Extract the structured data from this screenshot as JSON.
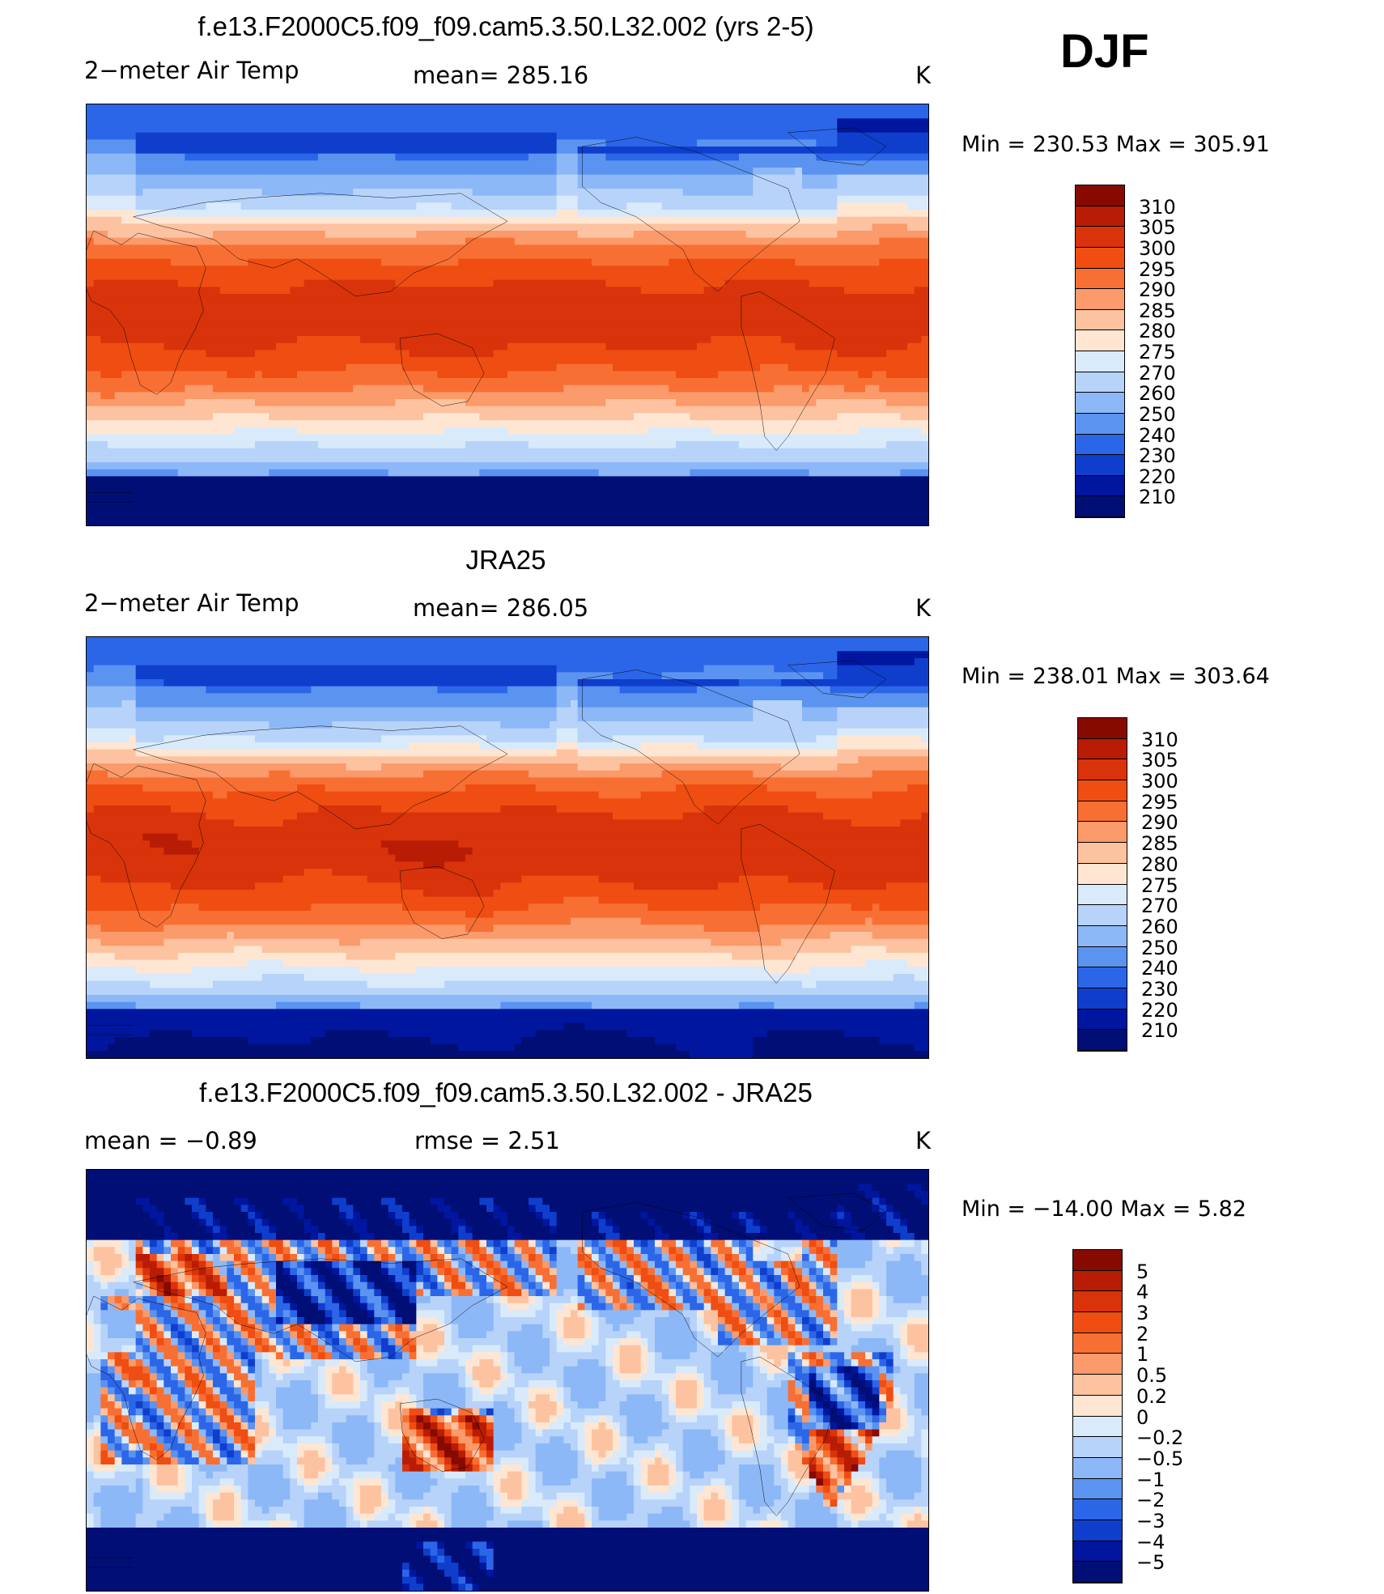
{
  "season": "DJF",
  "panels": [
    {
      "title": "f.e13.F2000C5.f09_f09.cam5.3.50.L32.002 (yrs 2-5)",
      "left_label": "2−meter Air Temp",
      "center_label": "mean=  285.16",
      "units": "K",
      "minmax": "Min  =  230.53  Max  =  305.91",
      "field": "model",
      "levels": [
        "310",
        "305",
        "300",
        "295",
        "290",
        "285",
        "280",
        "275",
        "270",
        "260",
        "250",
        "240",
        "230",
        "220",
        "210"
      ],
      "colors": [
        "#870a00",
        "#b81c05",
        "#d8330b",
        "#ef4d12",
        "#f86f34",
        "#fb9a6a",
        "#fdc3a0",
        "#fee6d3",
        "#d9eafb",
        "#b7d3fa",
        "#8db8f7",
        "#5b93f0",
        "#2c66e8",
        "#0f3ecd",
        "#00169e",
        "#000e76"
      ]
    },
    {
      "title": "JRA25",
      "left_label": "2−meter Air Temp",
      "center_label": "mean=  286.05",
      "units": "K",
      "minmax": "Min  =  238.01  Max  =  303.64",
      "field": "obs",
      "levels": [
        "310",
        "305",
        "300",
        "295",
        "290",
        "285",
        "280",
        "275",
        "270",
        "260",
        "250",
        "240",
        "230",
        "220",
        "210"
      ],
      "colors": [
        "#870a00",
        "#b81c05",
        "#d8330b",
        "#ef4d12",
        "#f86f34",
        "#fb9a6a",
        "#fdc3a0",
        "#fee6d3",
        "#d9eafb",
        "#b7d3fa",
        "#8db8f7",
        "#5b93f0",
        "#2c66e8",
        "#0f3ecd",
        "#00169e",
        "#000e76"
      ]
    },
    {
      "title": "f.e13.F2000C5.f09_f09.cam5.3.50.L32.002 - JRA25",
      "left_label": "mean  =    −0.89",
      "center_label": "rmse  =     2.51",
      "units": "K",
      "minmax": "Min  =  −14.00  Max  =      5.82",
      "field": "diff",
      "levels": [
        "5",
        "4",
        "3",
        "2",
        "1",
        "0.5",
        "0.2",
        "0",
        "−0.2",
        "−0.5",
        "−1",
        "−2",
        "−3",
        "−4",
        "−5"
      ],
      "colors": [
        "#870a00",
        "#b81c05",
        "#d8330b",
        "#ef4d12",
        "#f86f34",
        "#fb9a6a",
        "#fdc3a0",
        "#fee6d3",
        "#d9eafb",
        "#b7d3fa",
        "#8db8f7",
        "#5b93f0",
        "#2c66e8",
        "#0f3ecd",
        "#00169e",
        "#000e76"
      ]
    }
  ]
}
